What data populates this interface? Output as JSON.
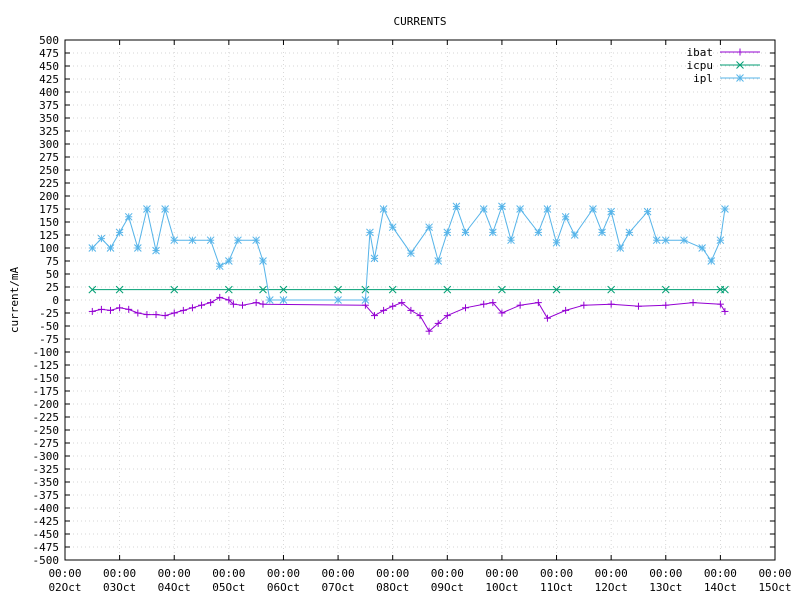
{
  "chart_data": {
    "type": "line",
    "title": "CURRENTS",
    "xlabel": "",
    "ylabel": "current/mA",
    "ylim": [
      -500,
      500
    ],
    "ystep": 25,
    "x_is_date": true,
    "xlim": [
      "2023-10-02 00:00",
      "2023-10-15 00:00"
    ],
    "x_ticks": [
      {
        "line1": "00:00",
        "line2": "02Oct",
        "x": "2023-10-02 00:00"
      },
      {
        "line1": "00:00",
        "line2": "03Oct",
        "x": "2023-10-03 00:00"
      },
      {
        "line1": "00:00",
        "line2": "04Oct",
        "x": "2023-10-04 00:00"
      },
      {
        "line1": "00:00",
        "line2": "05Oct",
        "x": "2023-10-05 00:00"
      },
      {
        "line1": "00:00",
        "line2": "06Oct",
        "x": "2023-10-06 00:00"
      },
      {
        "line1": "00:00",
        "line2": "07Oct",
        "x": "2023-10-07 00:00"
      },
      {
        "line1": "00:00",
        "line2": "08Oct",
        "x": "2023-10-08 00:00"
      },
      {
        "line1": "00:00",
        "line2": "09Oct",
        "x": "2023-10-09 00:00"
      },
      {
        "line1": "00:00",
        "line2": "10Oct",
        "x": "2023-10-10 00:00"
      },
      {
        "line1": "00:00",
        "line2": "11Oct",
        "x": "2023-10-11 00:00"
      },
      {
        "line1": "00:00",
        "line2": "12Oct",
        "x": "2023-10-12 00:00"
      },
      {
        "line1": "00:00",
        "line2": "13Oct",
        "x": "2023-10-13 00:00"
      },
      {
        "line1": "00:00",
        "line2": "14Oct",
        "x": "2023-10-14 00:00"
      },
      {
        "line1": "00:00",
        "line2": "15Oct",
        "x": "2023-10-15 00:00"
      }
    ],
    "grid": true,
    "legend_position": "top-right",
    "series": [
      {
        "name": "ibat",
        "color": "#9400d3",
        "marker": "plus",
        "points": [
          [
            "2023-10-02 12:00",
            -22
          ],
          [
            "2023-10-02 16:00",
            -18
          ],
          [
            "2023-10-02 20:00",
            -20
          ],
          [
            "2023-10-03 00:00",
            -15
          ],
          [
            "2023-10-03 04:00",
            -18
          ],
          [
            "2023-10-03 08:00",
            -25
          ],
          [
            "2023-10-03 12:00",
            -28
          ],
          [
            "2023-10-03 16:00",
            -28
          ],
          [
            "2023-10-03 20:00",
            -30
          ],
          [
            "2023-10-04 00:00",
            -25
          ],
          [
            "2023-10-04 04:00",
            -20
          ],
          [
            "2023-10-04 08:00",
            -15
          ],
          [
            "2023-10-04 12:00",
            -10
          ],
          [
            "2023-10-04 16:00",
            -5
          ],
          [
            "2023-10-04 20:00",
            5
          ],
          [
            "2023-10-05 00:00",
            0
          ],
          [
            "2023-10-05 02:00",
            -8
          ],
          [
            "2023-10-05 06:00",
            -10
          ],
          [
            "2023-10-05 12:00",
            -5
          ],
          [
            "2023-10-05 15:00",
            -8
          ],
          [
            "2023-10-07 12:00",
            -10
          ],
          [
            "2023-10-07 16:00",
            -30
          ],
          [
            "2023-10-07 20:00",
            -20
          ],
          [
            "2023-10-08 00:00",
            -12
          ],
          [
            "2023-10-08 04:00",
            -5
          ],
          [
            "2023-10-08 08:00",
            -20
          ],
          [
            "2023-10-08 12:00",
            -30
          ],
          [
            "2023-10-08 16:00",
            -60
          ],
          [
            "2023-10-08 20:00",
            -45
          ],
          [
            "2023-10-09 00:00",
            -30
          ],
          [
            "2023-10-09 08:00",
            -15
          ],
          [
            "2023-10-09 16:00",
            -8
          ],
          [
            "2023-10-09 20:00",
            -5
          ],
          [
            "2023-10-10 00:00",
            -25
          ],
          [
            "2023-10-10 08:00",
            -10
          ],
          [
            "2023-10-10 16:00",
            -5
          ],
          [
            "2023-10-10 20:00",
            -35
          ],
          [
            "2023-10-11 04:00",
            -20
          ],
          [
            "2023-10-11 12:00",
            -10
          ],
          [
            "2023-10-12 00:00",
            -8
          ],
          [
            "2023-10-12 12:00",
            -12
          ],
          [
            "2023-10-13 00:00",
            -10
          ],
          [
            "2023-10-13 12:00",
            -5
          ],
          [
            "2023-10-14 00:00",
            -8
          ],
          [
            "2023-10-14 02:00",
            -22
          ]
        ]
      },
      {
        "name": "icpu",
        "color": "#009e73",
        "marker": "cross",
        "points": [
          [
            "2023-10-02 12:00",
            20
          ],
          [
            "2023-10-03 00:00",
            20
          ],
          [
            "2023-10-04 00:00",
            20
          ],
          [
            "2023-10-05 00:00",
            20
          ],
          [
            "2023-10-05 15:00",
            20
          ],
          [
            "2023-10-06 00:00",
            20
          ],
          [
            "2023-10-07 00:00",
            20
          ],
          [
            "2023-10-07 12:00",
            20
          ],
          [
            "2023-10-08 00:00",
            20
          ],
          [
            "2023-10-09 00:00",
            20
          ],
          [
            "2023-10-10 00:00",
            20
          ],
          [
            "2023-10-11 00:00",
            20
          ],
          [
            "2023-10-12 00:00",
            20
          ],
          [
            "2023-10-13 00:00",
            20
          ],
          [
            "2023-10-14 00:00",
            20
          ],
          [
            "2023-10-14 02:00",
            20
          ]
        ]
      },
      {
        "name": "ipl",
        "color": "#56b4e9",
        "marker": "star",
        "points": [
          [
            "2023-10-02 12:00",
            100
          ],
          [
            "2023-10-02 16:00",
            118
          ],
          [
            "2023-10-02 20:00",
            100
          ],
          [
            "2023-10-03 00:00",
            130
          ],
          [
            "2023-10-03 04:00",
            160
          ],
          [
            "2023-10-03 08:00",
            100
          ],
          [
            "2023-10-03 12:00",
            175
          ],
          [
            "2023-10-03 16:00",
            95
          ],
          [
            "2023-10-03 20:00",
            175
          ],
          [
            "2023-10-04 00:00",
            115
          ],
          [
            "2023-10-04 08:00",
            115
          ],
          [
            "2023-10-04 16:00",
            115
          ],
          [
            "2023-10-04 20:00",
            65
          ],
          [
            "2023-10-05 00:00",
            75
          ],
          [
            "2023-10-05 04:00",
            115
          ],
          [
            "2023-10-05 12:00",
            115
          ],
          [
            "2023-10-05 15:00",
            75
          ],
          [
            "2023-10-05 18:00",
            0
          ],
          [
            "2023-10-06 00:00",
            0
          ],
          [
            "2023-10-07 00:00",
            0
          ],
          [
            "2023-10-07 12:00",
            0
          ],
          [
            "2023-10-07 14:00",
            130
          ],
          [
            "2023-10-07 16:00",
            80
          ],
          [
            "2023-10-07 20:00",
            175
          ],
          [
            "2023-10-08 00:00",
            140
          ],
          [
            "2023-10-08 08:00",
            90
          ],
          [
            "2023-10-08 16:00",
            140
          ],
          [
            "2023-10-08 20:00",
            75
          ],
          [
            "2023-10-09 00:00",
            130
          ],
          [
            "2023-10-09 04:00",
            180
          ],
          [
            "2023-10-09 08:00",
            130
          ],
          [
            "2023-10-09 16:00",
            175
          ],
          [
            "2023-10-09 20:00",
            130
          ],
          [
            "2023-10-10 00:00",
            180
          ],
          [
            "2023-10-10 04:00",
            115
          ],
          [
            "2023-10-10 08:00",
            175
          ],
          [
            "2023-10-10 16:00",
            130
          ],
          [
            "2023-10-10 20:00",
            175
          ],
          [
            "2023-10-11 00:00",
            110
          ],
          [
            "2023-10-11 04:00",
            160
          ],
          [
            "2023-10-11 08:00",
            125
          ],
          [
            "2023-10-11 16:00",
            175
          ],
          [
            "2023-10-11 20:00",
            130
          ],
          [
            "2023-10-12 00:00",
            170
          ],
          [
            "2023-10-12 04:00",
            100
          ],
          [
            "2023-10-12 08:00",
            130
          ],
          [
            "2023-10-12 16:00",
            170
          ],
          [
            "2023-10-12 20:00",
            115
          ],
          [
            "2023-10-13 00:00",
            115
          ],
          [
            "2023-10-13 08:00",
            115
          ],
          [
            "2023-10-13 16:00",
            100
          ],
          [
            "2023-10-13 20:00",
            75
          ],
          [
            "2023-10-14 00:00",
            115
          ],
          [
            "2023-10-14 02:00",
            175
          ]
        ]
      }
    ]
  }
}
